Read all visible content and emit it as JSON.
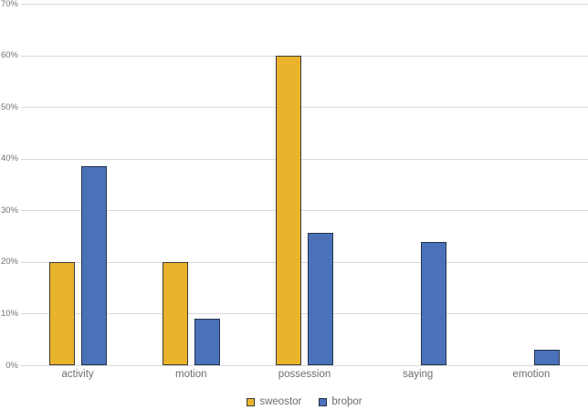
{
  "chart_data": {
    "type": "bar",
    "title": "",
    "xlabel": "",
    "ylabel": "",
    "categories": [
      "activity",
      "motion",
      "possession",
      "saying",
      "emotion"
    ],
    "series": [
      {
        "name": "sweostor",
        "color": "#E9B32B",
        "border_color": "#3D3D3D",
        "values": [
          20,
          20,
          60,
          0,
          0
        ]
      },
      {
        "name": "broþor",
        "color": "#4B72B8",
        "border_color": "#24344D",
        "values": [
          38.6,
          9,
          25.7,
          23.8,
          3
        ]
      }
    ],
    "ylim": [
      0,
      70
    ],
    "y_tick_step": 10,
    "y_tick_labels": [
      "0%",
      "10%",
      "20%",
      "30%",
      "40%",
      "50%",
      "60%",
      "70%"
    ],
    "grid": true,
    "gridline_color": "#D9D9D9",
    "axis_text_color": "#6E6E6E",
    "background_color": "#FFFFFF",
    "legend_position": "bottom"
  }
}
